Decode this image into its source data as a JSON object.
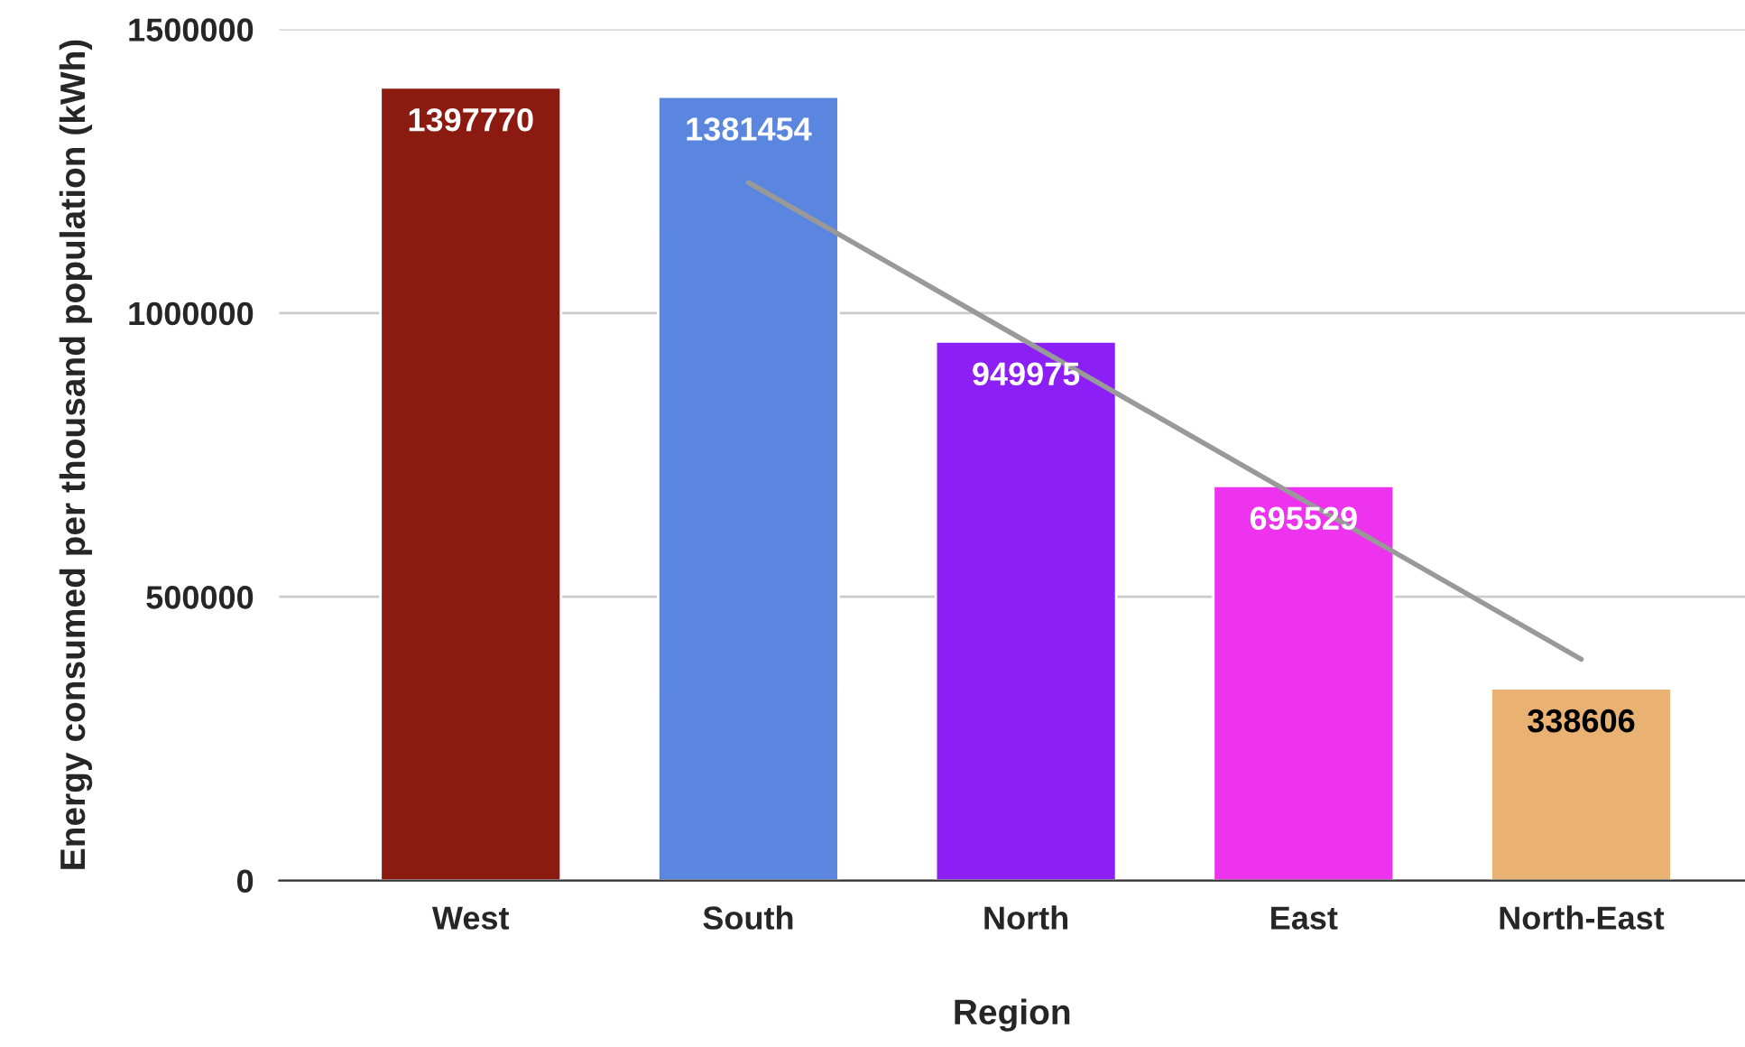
{
  "chart_data": {
    "type": "bar",
    "xlabel": "Region",
    "ylabel": "Energy consumed per thousand population (kWh)",
    "categories": [
      "West",
      "South",
      "North",
      "East",
      "North-East"
    ],
    "series": [
      {
        "values": [
          1397770,
          1381454,
          949975,
          695529,
          338606
        ],
        "colors": [
          "#8b1a10",
          "#5a86e0",
          "#8b1ff5",
          "#ee33ee",
          "#e9b273"
        ],
        "value_labels": [
          "1397770",
          "1381454",
          "949975",
          "695529",
          "338606"
        ]
      },
      {
        "type": "line",
        "color": "#999999",
        "values": [
          null,
          1230000,
          950000,
          670000,
          390000
        ]
      }
    ],
    "ylim": [
      0,
      1500000
    ],
    "yticks": [
      0,
      500000,
      1000000,
      1500000
    ],
    "grid": "y",
    "legend": false
  }
}
